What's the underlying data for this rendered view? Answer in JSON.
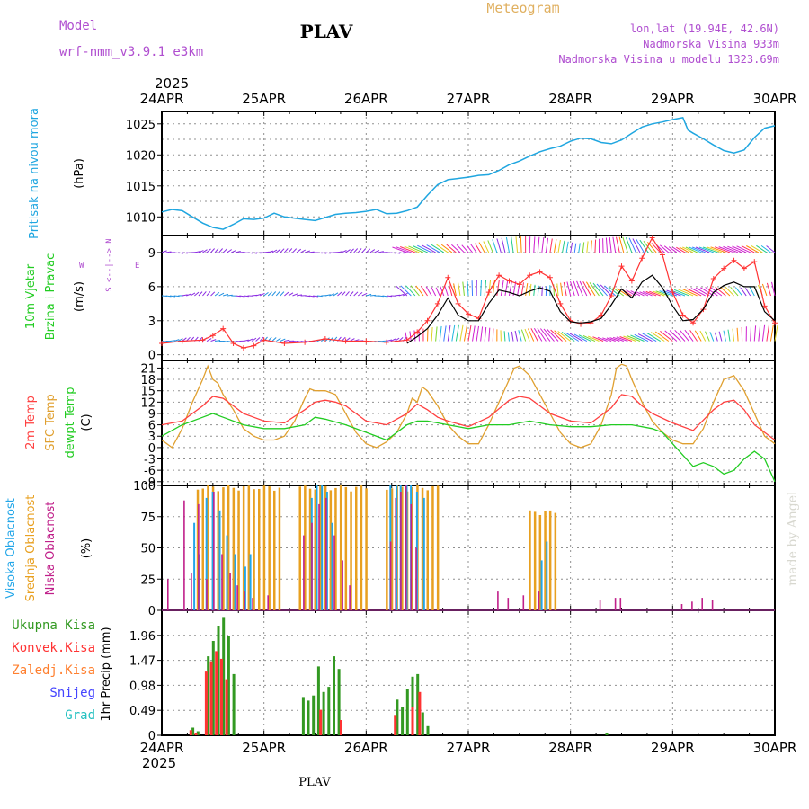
{
  "header": {
    "model_label": "Model",
    "model_name": "wrf-nmm_v3.9.1 e3km",
    "station": "PLAV",
    "app_title": "Meteogram",
    "coords": "lon,lat (19.94E, 42.6N)",
    "altitude": "Nadmorska Visina 933m",
    "model_altitude": "Nadmorska Visina u modelu 1323.69m",
    "year": "2025",
    "footer_station": "PLAV",
    "credit": "made by Angel"
  },
  "time_axis": {
    "ticks": [
      "24APR",
      "25APR",
      "26APR",
      "27APR",
      "28APR",
      "29APR",
      "30APR"
    ],
    "range_days": [
      0,
      6
    ]
  },
  "colors": {
    "pressure": "#1fa6e0",
    "wind_speed": "#000000",
    "gust": "#ff3333",
    "temp2m": "#ff4040",
    "sfc_temp": "#e0a030",
    "dewpt": "#22cc22",
    "high_cloud": "#22a6e8",
    "mid_cloud": "#e8a020",
    "low_cloud": "#c0208a",
    "total_rain": "#339922",
    "conv_rain": "#ff3333",
    "freezing_rain": "#ff8030",
    "snow": "#4444ff",
    "hail": "#22c0c0",
    "model_label": "#b04fd0",
    "meteogram_title": "#e0b060",
    "info": "#b04fd0",
    "wind_axis": "#b04fd0"
  },
  "chart_data": [
    {
      "type": "line",
      "id": "pressure",
      "ylabel": "Pritisak na nivou mora",
      "unit": "(hPa)",
      "ylim": [
        1007,
        1027
      ],
      "yticks": [
        1010,
        1015,
        1020,
        1025
      ],
      "series": [
        {
          "name": "MSLP",
          "x": [
            0,
            0.1,
            0.2,
            0.3,
            0.4,
            0.5,
            0.6,
            0.7,
            0.8,
            0.9,
            1.0,
            1.1,
            1.2,
            1.3,
            1.4,
            1.5,
            1.6,
            1.7,
            1.8,
            1.9,
            2.0,
            2.1,
            2.2,
            2.3,
            2.4,
            2.5,
            2.6,
            2.7,
            2.8,
            2.9,
            3.0,
            3.1,
            3.2,
            3.3,
            3.4,
            3.5,
            3.6,
            3.7,
            3.8,
            3.9,
            4.0,
            4.1,
            4.2,
            4.3,
            4.4,
            4.5,
            4.6,
            4.7,
            4.8,
            4.9,
            5.0,
            5.1,
            5.15,
            5.2,
            5.3,
            5.4,
            5.5,
            5.6,
            5.7,
            5.8,
            5.9,
            6.0
          ],
          "values": [
            1010.8,
            1011.2,
            1011.0,
            1010.0,
            1009.0,
            1008.3,
            1008.0,
            1008.8,
            1009.7,
            1009.6,
            1009.8,
            1010.6,
            1010.0,
            1009.8,
            1009.6,
            1009.4,
            1009.9,
            1010.4,
            1010.6,
            1010.7,
            1010.9,
            1011.2,
            1010.5,
            1010.6,
            1011.0,
            1011.6,
            1013.5,
            1015.2,
            1016.0,
            1016.2,
            1016.4,
            1016.7,
            1016.8,
            1017.5,
            1018.4,
            1019.0,
            1019.8,
            1020.5,
            1021.0,
            1021.4,
            1022.2,
            1022.7,
            1022.6,
            1022.0,
            1021.8,
            1022.4,
            1023.5,
            1024.5,
            1025.0,
            1025.3,
            1025.7,
            1026.0,
            1024.0,
            1023.5,
            1022.6,
            1021.6,
            1020.7,
            1020.3,
            1020.8,
            1022.8,
            1024.3,
            1024.7
          ]
        }
      ]
    },
    {
      "type": "line",
      "id": "wind",
      "ylabel": "10m Vjetar Brzina i Pravac",
      "unit": "(m/s)",
      "ylim": [
        -0.5,
        10.5
      ],
      "yticks": [
        0,
        3,
        6,
        9
      ],
      "direction_legend": {
        "n": "N",
        "s": "S",
        "w": "W",
        "e": "E",
        "arrows": "<--|-->"
      },
      "barb_levels": [
        9,
        5.2,
        1.2
      ],
      "series": [
        {
          "name": "gust",
          "x": [
            0,
            0.2,
            0.4,
            0.5,
            0.6,
            0.7,
            0.8,
            0.9,
            1.0,
            1.2,
            1.4,
            1.6,
            1.8,
            2.0,
            2.2,
            2.4,
            2.5,
            2.6,
            2.7,
            2.8,
            2.9,
            3.0,
            3.1,
            3.2,
            3.3,
            3.4,
            3.5,
            3.6,
            3.7,
            3.8,
            3.9,
            4.0,
            4.1,
            4.2,
            4.3,
            4.4,
            4.5,
            4.6,
            4.7,
            4.8,
            4.9,
            5.0,
            5.1,
            5.2,
            5.3,
            5.4,
            5.5,
            5.6,
            5.7,
            5.8,
            5.9,
            6.0
          ],
          "values": [
            1.0,
            1.2,
            1.3,
            1.7,
            2.3,
            1.0,
            0.6,
            0.8,
            1.3,
            1.0,
            1.1,
            1.4,
            1.2,
            1.2,
            1.1,
            1.3,
            2.0,
            3.0,
            4.5,
            6.8,
            4.5,
            3.6,
            3.2,
            5.5,
            7.0,
            6.5,
            6.2,
            7.0,
            7.3,
            6.8,
            4.5,
            3.0,
            2.7,
            2.8,
            3.5,
            5.2,
            7.8,
            6.5,
            8.5,
            10.3,
            8.8,
            5.5,
            3.5,
            2.8,
            4.0,
            6.7,
            7.6,
            8.3,
            7.6,
            8.2,
            4.3,
            2.8
          ]
        },
        {
          "name": "speed",
          "x": [
            2.4,
            2.5,
            2.6,
            2.7,
            2.8,
            2.9,
            3.0,
            3.1,
            3.2,
            3.3,
            3.4,
            3.5,
            3.6,
            3.7,
            3.8,
            3.9,
            4.0,
            4.1,
            4.2,
            4.3,
            4.4,
            4.5,
            4.6,
            4.7,
            4.8,
            4.9,
            5.0,
            5.1,
            5.2,
            5.3,
            5.4,
            5.5,
            5.6,
            5.7,
            5.8,
            5.9,
            6.0
          ],
          "values": [
            1.0,
            1.6,
            2.3,
            3.5,
            5.0,
            3.5,
            3.0,
            3.0,
            4.5,
            5.7,
            5.5,
            5.2,
            5.6,
            5.9,
            5.6,
            3.8,
            2.9,
            2.8,
            2.9,
            3.2,
            4.4,
            5.8,
            5.0,
            6.4,
            7.0,
            5.9,
            4.3,
            3.0,
            3.1,
            4.0,
            5.5,
            6.1,
            6.4,
            6.0,
            6.0,
            3.8,
            3.0
          ]
        }
      ]
    },
    {
      "type": "line",
      "id": "temperature",
      "ylabel": [
        "2m Temp",
        "SFC Temp",
        "dewpt Temp"
      ],
      "unit": "(C)",
      "ylim": [
        -10,
        23
      ],
      "yticks": [
        -9,
        -6,
        -3,
        0,
        3,
        6,
        9,
        12,
        15,
        18,
        21
      ],
      "series": [
        {
          "name": "2m Temp",
          "x": [
            0,
            0.2,
            0.4,
            0.5,
            0.6,
            0.7,
            0.8,
            0.9,
            1.0,
            1.2,
            1.4,
            1.5,
            1.6,
            1.7,
            1.8,
            1.9,
            2.0,
            2.2,
            2.4,
            2.5,
            2.6,
            2.7,
            2.8,
            3.0,
            3.2,
            3.4,
            3.5,
            3.6,
            3.7,
            3.8,
            4.0,
            4.2,
            4.4,
            4.5,
            4.6,
            4.7,
            4.8,
            5.0,
            5.2,
            5.4,
            5.5,
            5.6,
            5.7,
            5.8,
            6.0
          ],
          "values": [
            6,
            7,
            11,
            13.5,
            13,
            11,
            9,
            8,
            7,
            6.5,
            10,
            12,
            12.5,
            12,
            11,
            9,
            7,
            6,
            9,
            11.5,
            10,
            8,
            7,
            5.5,
            8,
            12.5,
            13.5,
            13,
            11,
            9,
            7,
            6.5,
            10.5,
            14,
            13.5,
            11,
            9,
            6.5,
            4.5,
            10,
            12,
            12.5,
            10,
            6,
            2
          ]
        },
        {
          "name": "SFC Temp",
          "x": [
            0,
            0.1,
            0.2,
            0.3,
            0.4,
            0.45,
            0.5,
            0.55,
            0.6,
            0.7,
            0.8,
            0.9,
            1.0,
            1.1,
            1.2,
            1.3,
            1.4,
            1.45,
            1.5,
            1.6,
            1.7,
            1.8,
            1.9,
            2.0,
            2.1,
            2.2,
            2.3,
            2.4,
            2.45,
            2.5,
            2.55,
            2.6,
            2.7,
            2.8,
            2.9,
            3.0,
            3.1,
            3.2,
            3.3,
            3.4,
            3.45,
            3.5,
            3.6,
            3.7,
            3.8,
            3.9,
            4.0,
            4.1,
            4.2,
            4.3,
            4.4,
            4.45,
            4.5,
            4.55,
            4.6,
            4.7,
            4.8,
            4.9,
            5.0,
            5.1,
            5.2,
            5.3,
            5.4,
            5.5,
            5.6,
            5.7,
            5.8,
            5.9,
            6.0
          ],
          "values": [
            2,
            0,
            5,
            12,
            18,
            21.5,
            18,
            17,
            14,
            10,
            5,
            3,
            2,
            2,
            3,
            7,
            13,
            15.5,
            15,
            15,
            14,
            9,
            4,
            1,
            0,
            1.5,
            4,
            9,
            13,
            12,
            16,
            15,
            11,
            6,
            3,
            1,
            1,
            6,
            12,
            18,
            21,
            21.5,
            19,
            14,
            9,
            4,
            1,
            0,
            1,
            6,
            14,
            21,
            22,
            21.5,
            18,
            12,
            7,
            4,
            2,
            1,
            1,
            5,
            12,
            18,
            19,
            15,
            9,
            3,
            1
          ]
        },
        {
          "name": "dewpt Temp",
          "x": [
            0,
            0.2,
            0.4,
            0.5,
            0.6,
            0.8,
            1.0,
            1.2,
            1.4,
            1.5,
            1.6,
            1.8,
            2.0,
            2.2,
            2.4,
            2.5,
            2.6,
            2.8,
            3.0,
            3.2,
            3.4,
            3.6,
            3.8,
            4.0,
            4.2,
            4.4,
            4.6,
            4.8,
            4.9,
            5.0,
            5.1,
            5.2,
            5.3,
            5.4,
            5.5,
            5.6,
            5.7,
            5.8,
            5.9,
            6.0
          ],
          "values": [
            3,
            6,
            8,
            9,
            8,
            6,
            5,
            5,
            6,
            8,
            7.5,
            6,
            4,
            2,
            6,
            7,
            7,
            6,
            5,
            6,
            6,
            7,
            6,
            5.5,
            5.5,
            6,
            6,
            5,
            4,
            1,
            -2,
            -5,
            -4,
            -5,
            -7,
            -6,
            -3,
            -1,
            -3,
            -9
          ]
        }
      ]
    },
    {
      "type": "bar",
      "id": "cloud",
      "ylabel": [
        "Visoka Oblacnost",
        "Srednja Oblacnost",
        "Niska Oblacnost"
      ],
      "unit": "(%)",
      "ylim": [
        0,
        100
      ],
      "yticks": [
        0,
        25,
        50,
        75,
        100
      ],
      "bands": [
        {
          "name": "Srednja Oblacnost",
          "x0": 0.35,
          "x1": 1.15,
          "step": 0.05,
          "value": 100
        },
        {
          "name": "Srednja Oblacnost",
          "x0": 1.35,
          "x1": 2.0,
          "step": 0.05,
          "value": 100
        },
        {
          "name": "Srednja Oblacnost",
          "x0": 2.2,
          "x1": 2.7,
          "step": 0.05,
          "value": 100
        },
        {
          "name": "Srednja Oblacnost",
          "x0": 3.6,
          "x1": 3.85,
          "step": 0.05,
          "value": 80
        }
      ],
      "series": [
        {
          "name": "Niska Oblacnost",
          "x": [
            0.07,
            0.23,
            0.3,
            0.37,
            0.45,
            0.52,
            0.6,
            0.68,
            0.75,
            0.82,
            0.9,
            1.05,
            1.4,
            1.48,
            1.55,
            1.62,
            1.7,
            1.78,
            1.85,
            2.25,
            2.3,
            2.35,
            2.4,
            2.45,
            2.5,
            3.3,
            3.4,
            3.55,
            3.7,
            4.3,
            4.45,
            4.5,
            5.1,
            5.2,
            5.3,
            5.4
          ],
          "values": [
            25,
            88,
            30,
            85,
            25,
            95,
            45,
            30,
            20,
            15,
            10,
            12,
            60,
            70,
            85,
            90,
            60,
            40,
            20,
            55,
            90,
            95,
            100,
            85,
            50,
            15,
            10,
            12,
            15,
            8,
            10,
            10,
            5,
            7,
            10,
            8
          ]
        },
        {
          "name": "Visoka Oblacnost",
          "x": [
            0.3,
            0.35,
            0.42,
            0.48,
            0.55,
            0.62,
            0.7,
            0.8,
            0.85,
            1.45,
            1.5,
            1.55,
            1.6,
            1.65,
            2.22,
            2.28,
            2.32,
            2.38,
            2.42,
            2.48,
            2.55,
            3.75,
            3.7
          ],
          "values": [
            70,
            45,
            90,
            95,
            80,
            60,
            45,
            35,
            45,
            90,
            100,
            100,
            95,
            70,
            100,
            100,
            100,
            100,
            100,
            95,
            90,
            55,
            40
          ]
        }
      ]
    },
    {
      "type": "bar",
      "id": "precip",
      "ylabel": "1hr Precip (mm)",
      "legend": [
        "Ukupna Kisa",
        "Konvek.Kisa",
        "Zaledj.Kisa",
        "Snijeg",
        "Grad"
      ],
      "ylim": [
        0,
        2.45
      ],
      "yticks": [
        0,
        0.49,
        0.98,
        1.47,
        1.96
      ],
      "ytick_labels": [
        "0",
        "0.49",
        "0.98",
        "1.47",
        "1.96"
      ],
      "series": [
        {
          "name": "Ukupna Kisa",
          "x": [
            0.3,
            0.35,
            0.45,
            0.5,
            0.55,
            0.6,
            0.65,
            0.7,
            1.38,
            1.43,
            1.48,
            1.53,
            1.58,
            1.63,
            1.68,
            1.73,
            2.3,
            2.35,
            2.4,
            2.45,
            2.5,
            2.55,
            2.6,
            4.35
          ],
          "values": [
            0.15,
            0.08,
            1.55,
            1.85,
            2.15,
            2.32,
            1.95,
            1.2,
            0.75,
            0.68,
            0.78,
            1.35,
            0.85,
            0.95,
            1.55,
            1.3,
            0.7,
            0.55,
            0.9,
            1.15,
            1.2,
            0.45,
            0.18,
            0.05
          ]
        },
        {
          "name": "Konvek.Kisa",
          "x": [
            0.28,
            0.33,
            0.43,
            0.48,
            0.53,
            0.58,
            0.63,
            1.55,
            1.75,
            2.28,
            2.45,
            2.52
          ],
          "values": [
            0.1,
            0.05,
            1.25,
            1.45,
            1.65,
            1.5,
            1.1,
            0.5,
            0.3,
            0.4,
            0.55,
            0.85
          ]
        }
      ]
    }
  ]
}
